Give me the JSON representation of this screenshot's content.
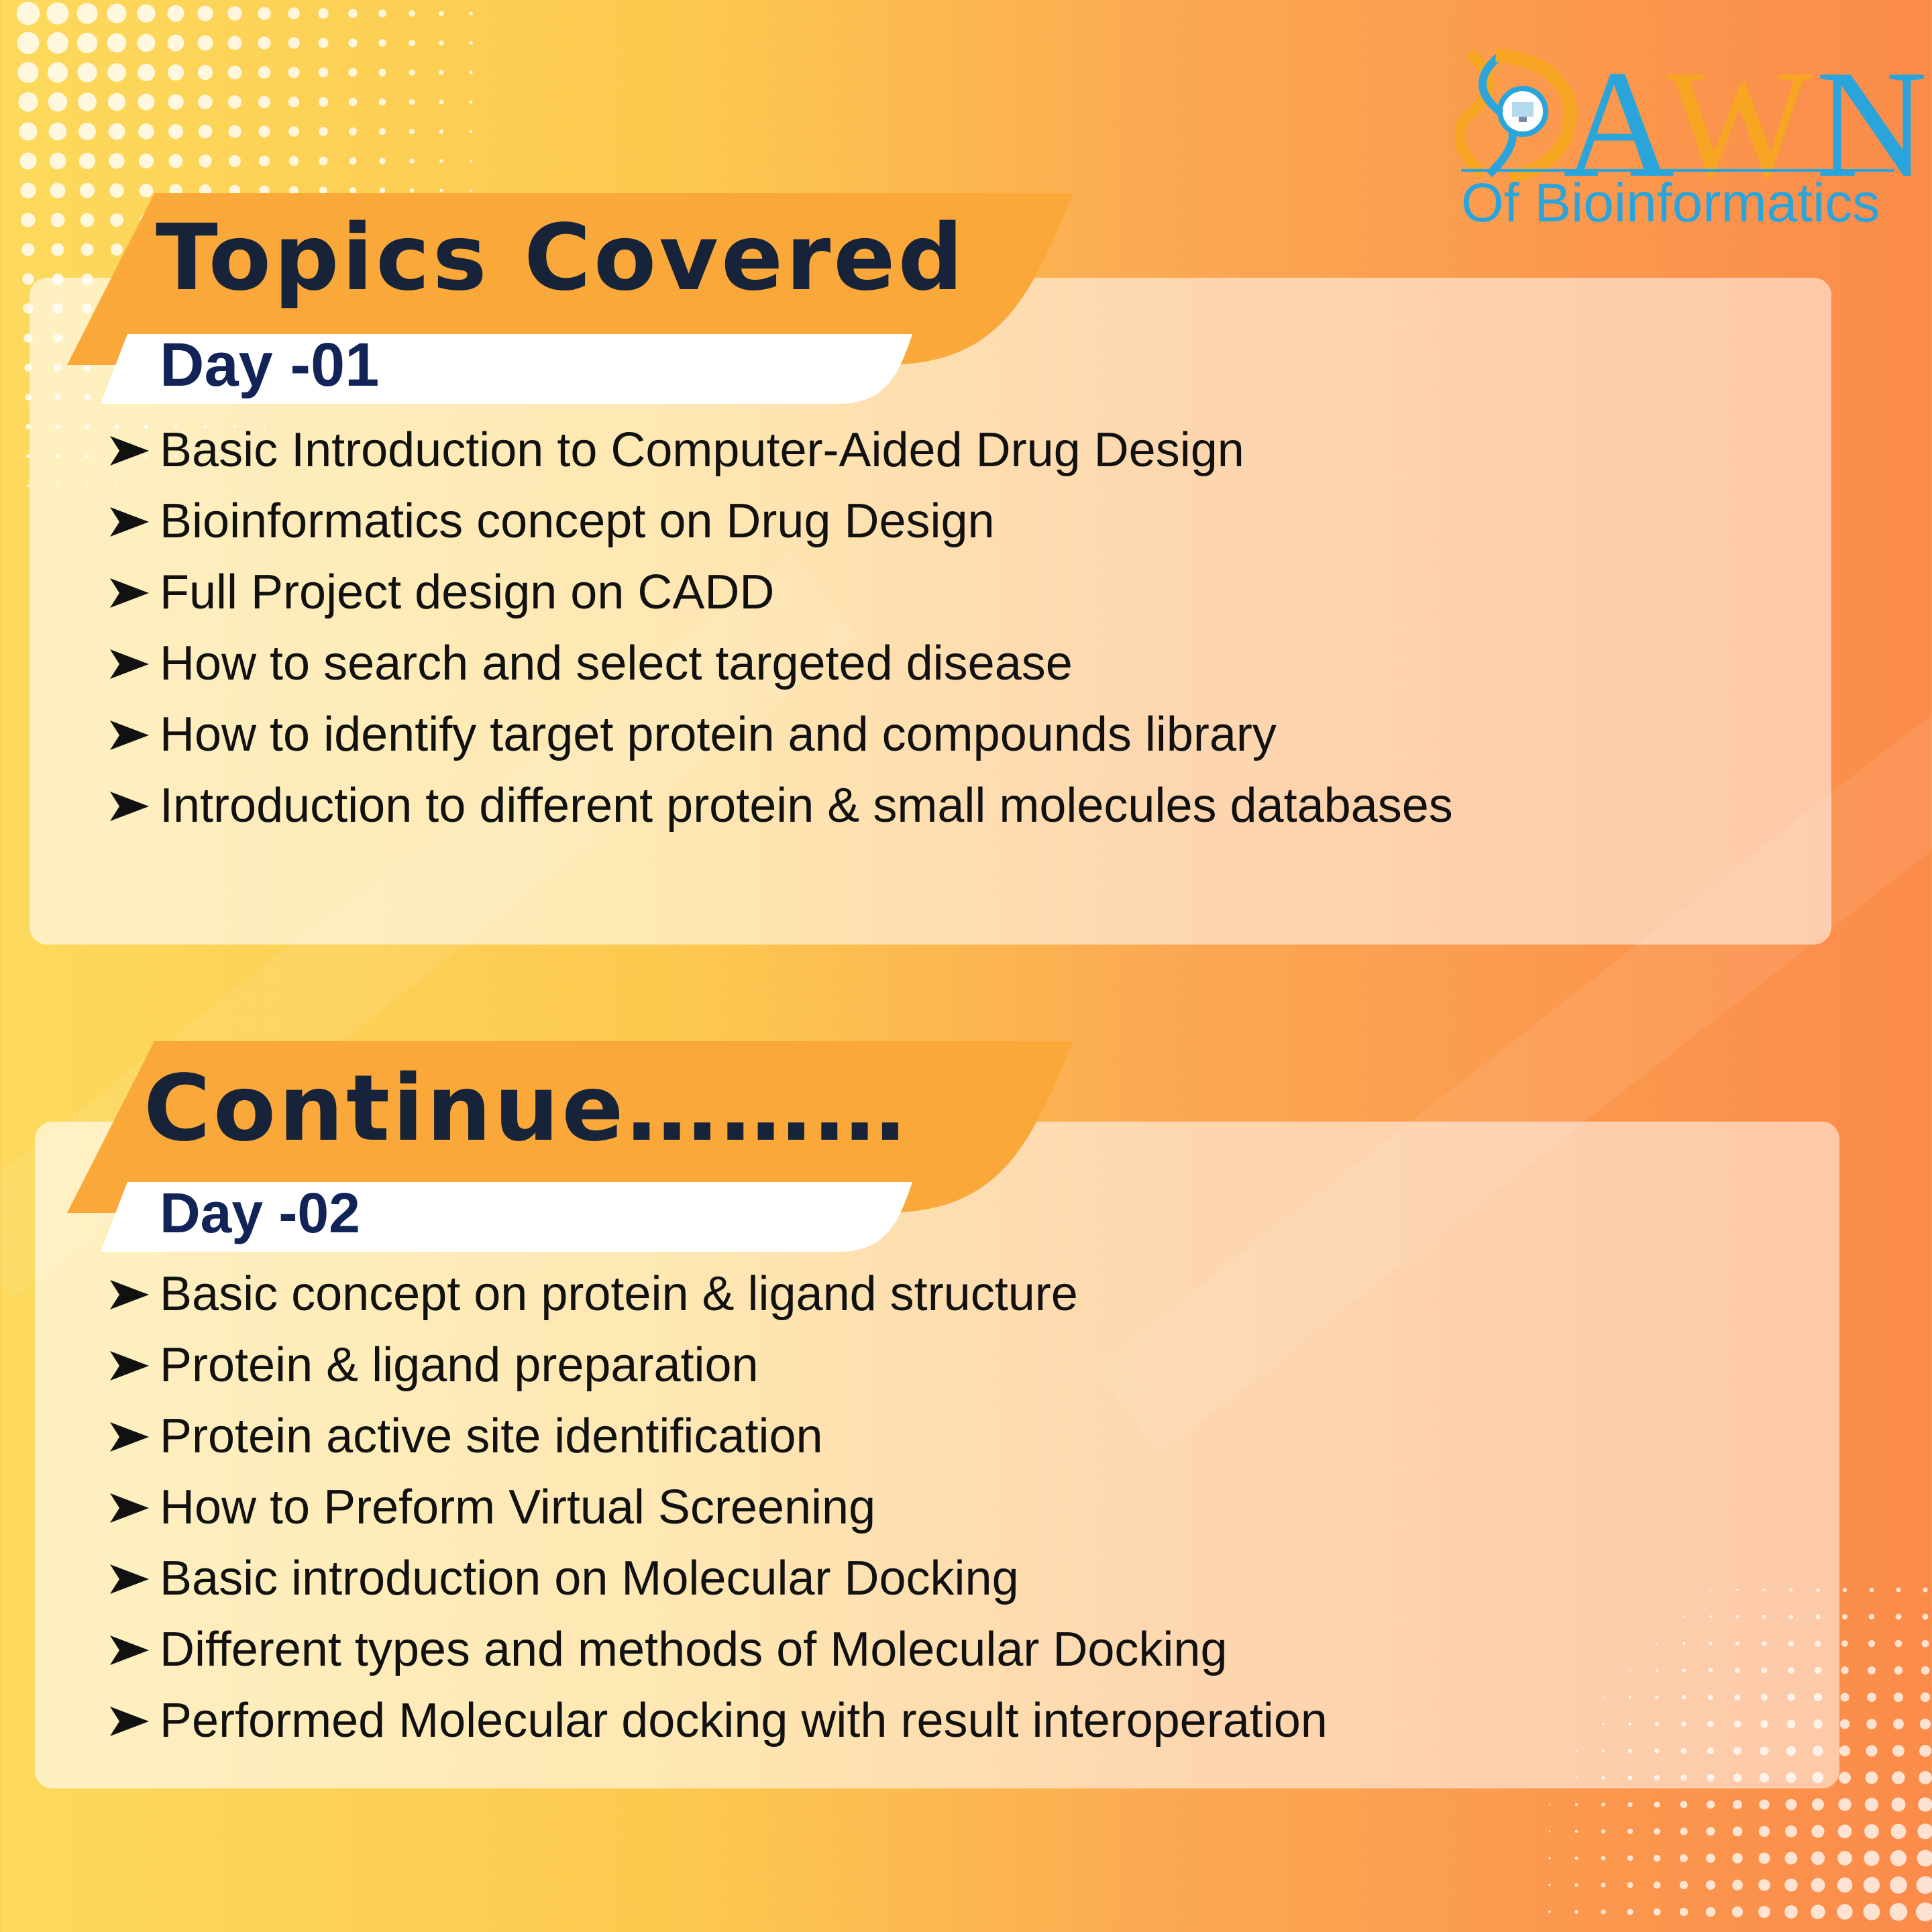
{
  "colors": {
    "title_text": "#172338",
    "day_text": "#122457",
    "banner": "#fba83a",
    "logo_blue": "#2aa5db",
    "logo_orange": "#f6a623"
  },
  "logo": {
    "letters": "AWN",
    "subtitle": "Of Bioinformatics"
  },
  "section1": {
    "title": "Topics Covered",
    "day_label": "Day -01",
    "items": [
      "Basic Introduction to Computer-Aided Drug Design",
      "Bioinformatics concept on Drug Design",
      "Full Project design on CADD",
      "How to search and select targeted disease",
      "How to identify target protein and compounds library",
      "Introduction to different protein & small molecules databases"
    ]
  },
  "section2": {
    "title": "Continue………",
    "day_label": "Day -02",
    "items": [
      "Basic concept on protein & ligand structure",
      "Protein & ligand preparation",
      "Protein active site identification",
      "How to Preform Virtual Screening",
      "Basic introduction on Molecular Docking",
      "Different types and methods of Molecular Docking",
      "Performed Molecular docking with result interoperation"
    ]
  }
}
